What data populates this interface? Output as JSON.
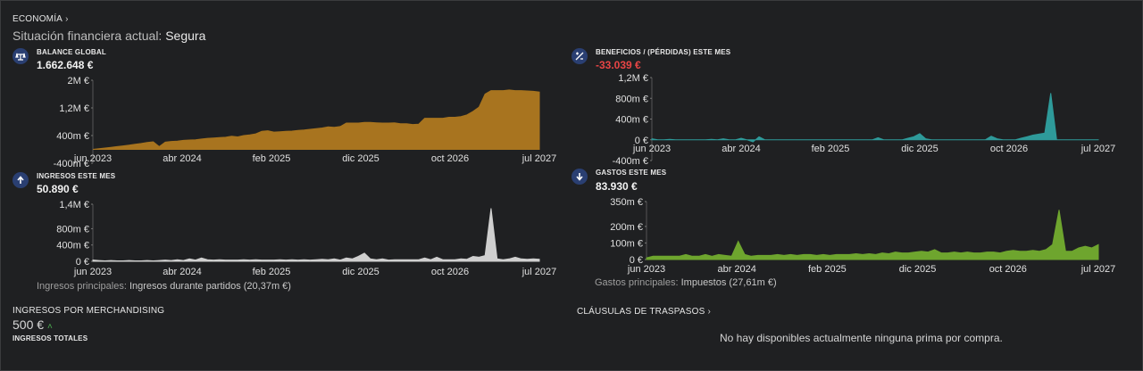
{
  "header": {
    "section_label": "ECONOMÍA",
    "situation_label": "Situación financiera actual:",
    "situation_value": "Segura"
  },
  "cards": {
    "balance": {
      "title": "BALANCE GLOBAL",
      "value": "1.662.648 €",
      "icon": "balance-scale-icon"
    },
    "profit": {
      "title": "BENEFICIOS / (PÉRDIDAS) ESTE MES",
      "value": "-33.039 €",
      "icon": "plus-minus-icon"
    },
    "income": {
      "title": "INGRESOS ESTE MES",
      "value": "50.890 €",
      "icon": "arrow-up-icon"
    },
    "expenses": {
      "title": "GASTOS ESTE MES",
      "value": "83.930 €",
      "icon": "arrow-down-icon"
    }
  },
  "notes": {
    "income_label": "Ingresos principales:",
    "income_value": "Ingresos durante partidos (20,37m €)",
    "expenses_label": "Gastos principales:",
    "expenses_value": "Impuestos (27,61m €)"
  },
  "merch": {
    "title": "INGRESOS POR MERCHANDISING",
    "value": "500 €",
    "subtitle": "INGRESOS TOTALES"
  },
  "transfers": {
    "title": "CLÁUSULAS DE TRASPASOS",
    "empty_message": "No hay disponibles actualmente ninguna prima por compra."
  },
  "colors": {
    "balance": "#a8741f",
    "profit": "#2e9a9a",
    "income": "#cfcfcf",
    "expenses": "#6ea52e",
    "icon_bg": "#2a3f72"
  },
  "chart_data": [
    {
      "name": "balance",
      "type": "area",
      "x_ticks": [
        "jun 2023",
        "abr 2024",
        "feb 2025",
        "dic 2025",
        "oct 2026",
        "jul 2027"
      ],
      "y_ticks": [
        "2M €",
        "1,2M €",
        "400m €",
        "-400m €"
      ],
      "ylim": [
        -400000,
        2000000
      ],
      "y_tick_values": [
        2000000,
        1200000,
        400000,
        -400000
      ],
      "values": [
        0,
        20000,
        40000,
        60000,
        80000,
        100000,
        120000,
        150000,
        170000,
        200000,
        220000,
        80000,
        210000,
        230000,
        240000,
        260000,
        270000,
        280000,
        300000,
        320000,
        330000,
        340000,
        350000,
        380000,
        360000,
        400000,
        420000,
        450000,
        520000,
        540000,
        500000,
        510000,
        520000,
        530000,
        550000,
        560000,
        580000,
        600000,
        620000,
        650000,
        640000,
        660000,
        760000,
        760000,
        760000,
        780000,
        780000,
        770000,
        760000,
        760000,
        770000,
        740000,
        740000,
        720000,
        730000,
        900000,
        900000,
        900000,
        900000,
        930000,
        930000,
        950000,
        1000000,
        1100000,
        1220000,
        1600000,
        1700000,
        1700000,
        1700000,
        1720000,
        1700000,
        1700000,
        1690000,
        1680000,
        1660000
      ]
    },
    {
      "name": "profit",
      "type": "area",
      "x_ticks": [
        "jun 2023",
        "abr 2024",
        "feb 2025",
        "dic 2025",
        "oct 2026",
        "jul 2027"
      ],
      "y_ticks": [
        "1,2M €",
        "800m €",
        "400m €",
        "0 €",
        "-400m €"
      ],
      "ylim": [
        -400000,
        1200000
      ],
      "y_tick_values": [
        1200000,
        800000,
        400000,
        0,
        -400000
      ],
      "values": [
        20000,
        0,
        0,
        10000,
        0,
        0,
        0,
        0,
        0,
        0,
        10000,
        0,
        20000,
        0,
        0,
        30000,
        0,
        -40000,
        60000,
        0,
        0,
        0,
        0,
        0,
        0,
        0,
        0,
        0,
        0,
        0,
        0,
        0,
        0,
        0,
        0,
        0,
        0,
        0,
        40000,
        0,
        0,
        0,
        0,
        30000,
        60000,
        120000,
        20000,
        0,
        0,
        0,
        0,
        0,
        0,
        0,
        0,
        0,
        0,
        70000,
        20000,
        0,
        0,
        0,
        30000,
        60000,
        90000,
        110000,
        130000,
        900000,
        0,
        0,
        0,
        0,
        0,
        0,
        0,
        0
      ]
    },
    {
      "name": "income",
      "type": "area",
      "x_ticks": [
        "jun 2023",
        "abr 2024",
        "feb 2025",
        "dic 2025",
        "oct 2026",
        "jul 2027"
      ],
      "y_ticks": [
        "1,4M €",
        "800m €",
        "400m €",
        "0 €"
      ],
      "ylim": [
        0,
        1400000
      ],
      "y_tick_values": [
        1400000,
        800000,
        400000,
        0
      ],
      "values": [
        30000,
        20000,
        10000,
        20000,
        10000,
        10000,
        20000,
        10000,
        10000,
        20000,
        10000,
        20000,
        30000,
        20000,
        40000,
        20000,
        60000,
        30000,
        80000,
        40000,
        30000,
        40000,
        30000,
        30000,
        30000,
        40000,
        30000,
        40000,
        30000,
        30000,
        30000,
        40000,
        30000,
        40000,
        30000,
        40000,
        30000,
        40000,
        50000,
        40000,
        60000,
        30000,
        80000,
        60000,
        120000,
        200000,
        60000,
        40000,
        60000,
        30000,
        40000,
        40000,
        40000,
        40000,
        40000,
        80000,
        40000,
        100000,
        40000,
        40000,
        40000,
        60000,
        50000,
        120000,
        100000,
        140000,
        1300000,
        60000,
        40000,
        60000,
        100000,
        60000,
        50000,
        60000,
        50000
      ]
    },
    {
      "name": "expenses",
      "type": "area",
      "x_ticks": [
        "jun 2023",
        "abr 2024",
        "feb 2025",
        "dic 2025",
        "oct 2026",
        "jul 2027"
      ],
      "y_ticks": [
        "350m €",
        "200m €",
        "100m €",
        "0 €"
      ],
      "ylim": [
        0,
        350000
      ],
      "y_tick_values": [
        350000,
        200000,
        100000,
        0
      ],
      "values": [
        10000,
        20000,
        20000,
        20000,
        20000,
        20000,
        30000,
        20000,
        20000,
        30000,
        20000,
        30000,
        25000,
        20000,
        110000,
        30000,
        20000,
        25000,
        25000,
        25000,
        30000,
        25000,
        30000,
        25000,
        30000,
        30000,
        25000,
        30000,
        25000,
        30000,
        30000,
        30000,
        35000,
        30000,
        35000,
        30000,
        40000,
        35000,
        45000,
        40000,
        40000,
        45000,
        50000,
        45000,
        60000,
        40000,
        40000,
        45000,
        40000,
        45000,
        40000,
        40000,
        45000,
        45000,
        40000,
        50000,
        55000,
        50000,
        50000,
        55000,
        50000,
        60000,
        90000,
        300000,
        50000,
        50000,
        70000,
        80000,
        70000,
        90000
      ]
    }
  ]
}
